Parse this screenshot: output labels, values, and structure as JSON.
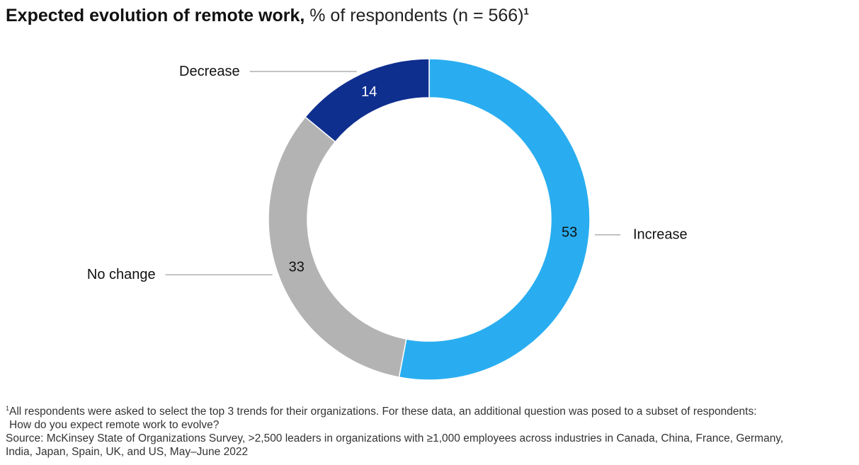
{
  "title": {
    "bold": "Expected evolution of remote work,",
    "sub": " % of respondents (n = 566)",
    "footnote_marker": "1"
  },
  "chart_data": {
    "type": "pie",
    "donut": true,
    "categories": [
      "Increase",
      "No change",
      "Decrease"
    ],
    "values": [
      53,
      33,
      14
    ],
    "colors": [
      "#29adf0",
      "#b3b3b3",
      "#0f2f8f"
    ],
    "label_colors": [
      "#111111",
      "#111111",
      "#ffffff"
    ],
    "start": "12 o'clock",
    "direction": "clockwise",
    "legend": "leader lines"
  },
  "footnote": {
    "marker": "1",
    "line1": "All respondents were asked to select the top 3 trends for their organizations. For these data, an additional question was posed to a subset of respondents:",
    "line2": "How do you expect remote work to evolve?",
    "source1": "Source: McKinsey State of Organizations Survey, >2,500 leaders in organizations with ≥1,000 employees across industries in Canada, China, France, Germany,",
    "source2": "India, Japan, Spain, UK, and US, May–June 2022"
  }
}
